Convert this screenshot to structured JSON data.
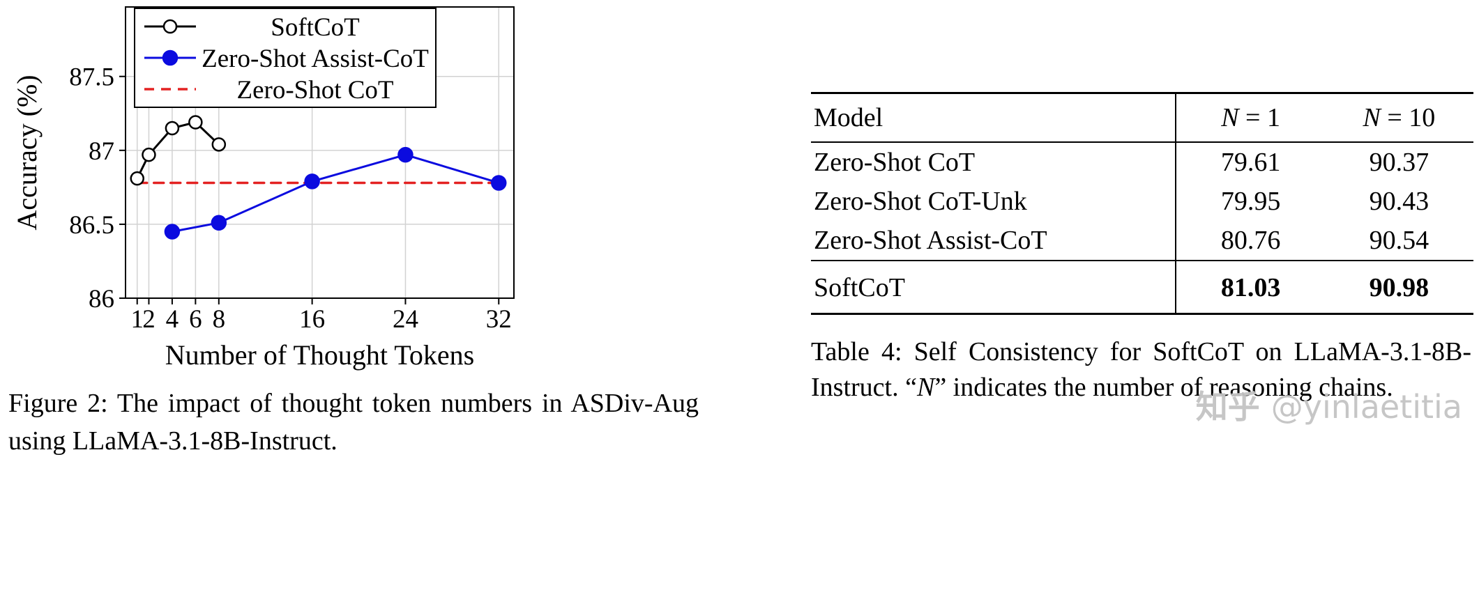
{
  "figure": {
    "caption": "Figure 2: The impact of thought token numbers in ASDiv-Aug using LLaMA-3.1-8B-Instruct."
  },
  "chart_data": {
    "type": "line",
    "title": "",
    "xlabel": "Number of Thought Tokens",
    "ylabel": "Accuracy (%)",
    "xlim": [
      0,
      33.3
    ],
    "ylim": [
      86,
      87.97
    ],
    "x_ticks": [
      1,
      2,
      4,
      6,
      8,
      16,
      24,
      32
    ],
    "x_tick_labels": [
      "1",
      "2",
      "4",
      "6",
      "8",
      "16",
      "24",
      "32"
    ],
    "y_ticks": [
      86,
      86.5,
      87,
      87.5
    ],
    "y_tick_labels": [
      "86",
      "86.5",
      "87",
      "87.5"
    ],
    "grid": true,
    "legend_position": "top-left",
    "grid_color": "#d2d2d2",
    "series": [
      {
        "name": "SoftCoT",
        "color": "#000000",
        "line_style": "solid",
        "marker": "open-circle",
        "x": [
          1,
          2,
          4,
          6,
          8
        ],
        "y": [
          86.81,
          86.97,
          87.15,
          87.19,
          87.04
        ]
      },
      {
        "name": "Zero-Shot Assist-CoT",
        "color": "#0b0bdf",
        "line_style": "solid",
        "marker": "filled-circle",
        "x": [
          4,
          8,
          16,
          24,
          32
        ],
        "y": [
          86.45,
          86.51,
          86.79,
          86.97,
          86.78
        ]
      },
      {
        "name": "Zero-Shot CoT",
        "color": "#e32222",
        "line_style": "dashed",
        "marker": "none",
        "x": [
          1,
          32
        ],
        "y": [
          86.78,
          86.78
        ]
      }
    ]
  },
  "table": {
    "columns": {
      "model": "Model",
      "n1": {
        "n": "N",
        "rest": " = 1"
      },
      "n10": {
        "n": "N",
        "rest": " = 10"
      }
    },
    "rows": [
      {
        "model": "Zero-Shot CoT",
        "n1": "79.61",
        "n10": "90.37"
      },
      {
        "model": "Zero-Shot CoT-Unk",
        "n1": "79.95",
        "n10": "90.43"
      },
      {
        "model": "Zero-Shot Assist-CoT",
        "n1": "80.76",
        "n10": "90.54"
      }
    ],
    "highlight_row": {
      "model": "SoftCoT",
      "n1": "81.03",
      "n10": "90.98"
    },
    "caption": {
      "prefix": "Table 4: Self Consistency for SoftCoT on LLaMA-3.1-8B-Instruct. “",
      "n": "N",
      "suffix": "” indicates the number of reasoning chains."
    }
  },
  "watermark": {
    "brand": "知乎",
    "handle": "@yinlaetitia"
  }
}
